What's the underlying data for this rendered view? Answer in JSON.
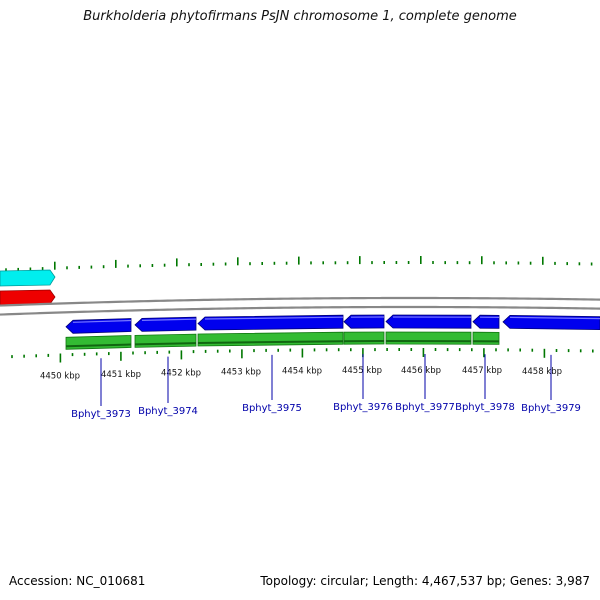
{
  "title": "Burkholderia phytofirmans PsJN chromosome 1, complete genome",
  "accession_label": "Accession: NC_010681",
  "summary_label": "Topology: circular; Length: 4,467,537 bp; Genes: 3,987",
  "colors": {
    "forward_gene": "#0000ee",
    "cds": "#33bb33",
    "track_cyan": "#00eeee",
    "track_red": "#ee0000",
    "backbone": "#888888",
    "ticks": "#007700",
    "gene_label": "#0000aa"
  },
  "scale": {
    "unit": "kbp",
    "labels": [
      "4450 kbp",
      "4451 kbp",
      "4452 kbp",
      "4453 kbp",
      "4454 kbp",
      "4455 kbp",
      "4456 kbp",
      "4457 kbp",
      "4458 kbp"
    ]
  },
  "genes": [
    {
      "name": "Bphyt_3973"
    },
    {
      "name": "Bphyt_3974"
    },
    {
      "name": "Bphyt_3975"
    },
    {
      "name": "Bphyt_3976"
    },
    {
      "name": "Bphyt_3977"
    },
    {
      "name": "Bphyt_3978"
    },
    {
      "name": "Bphyt_3979"
    }
  ]
}
